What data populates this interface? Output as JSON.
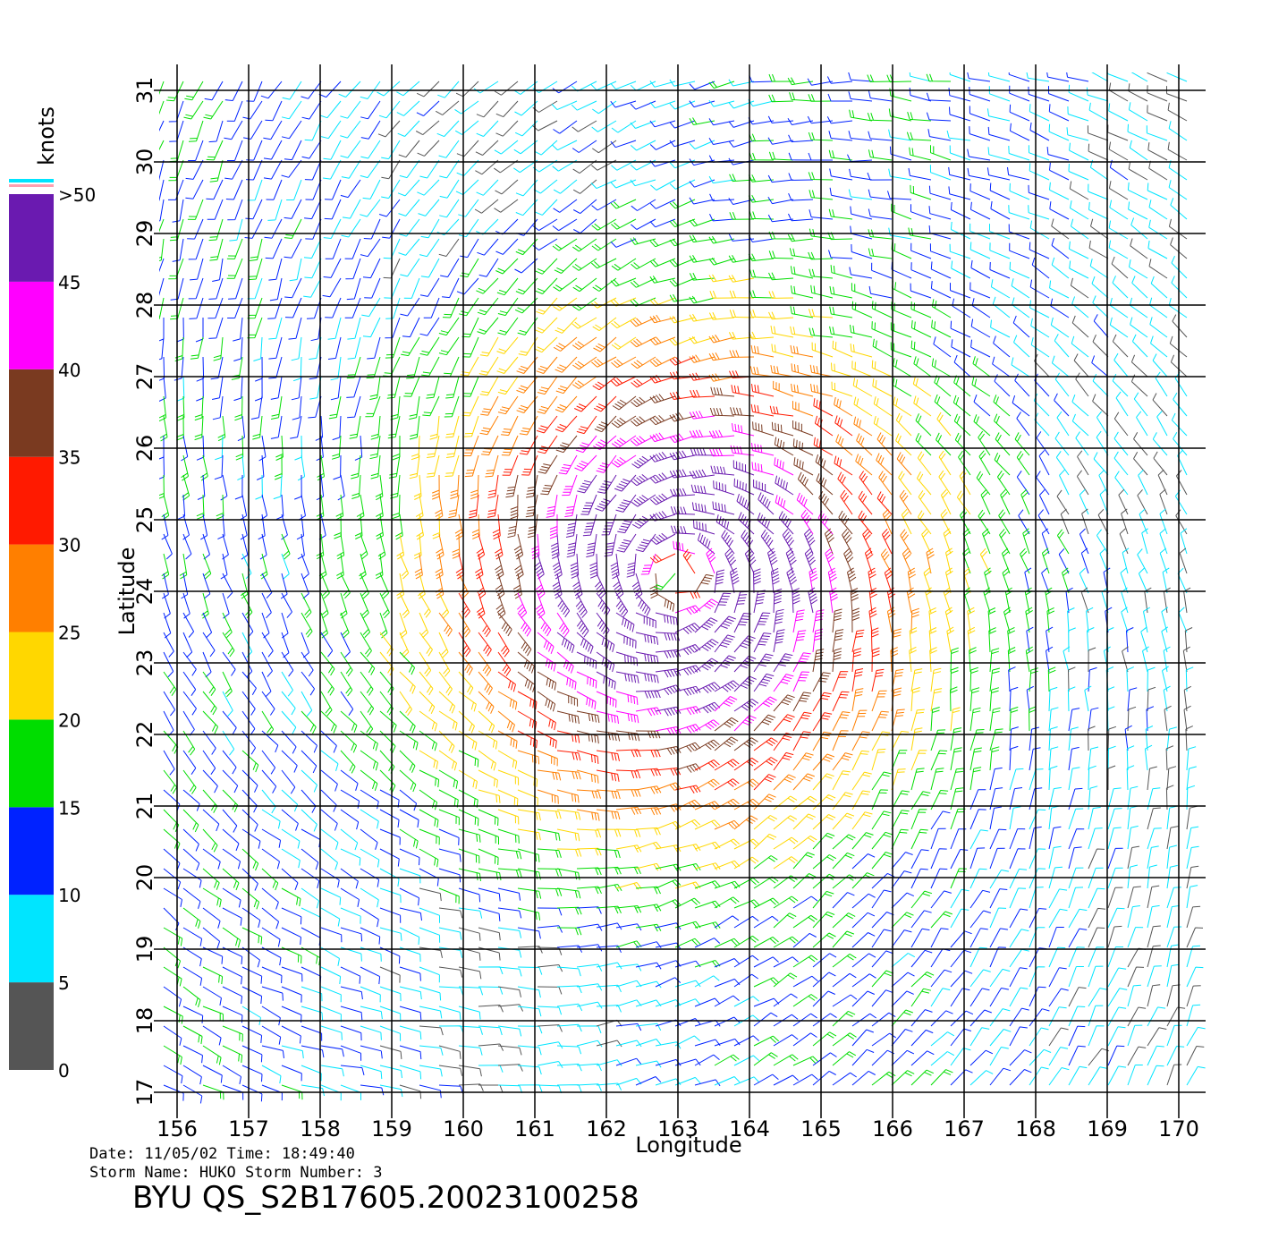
{
  "chart_data": {
    "type": "wind-barb-map",
    "xlabel": "Longitude",
    "ylabel": "Latitude",
    "xlim": [
      156,
      170
    ],
    "ylim": [
      17,
      31
    ],
    "xticks": [
      156,
      157,
      158,
      159,
      160,
      161,
      162,
      163,
      164,
      165,
      166,
      167,
      168,
      169,
      170
    ],
    "yticks": [
      17,
      18,
      19,
      20,
      21,
      22,
      23,
      24,
      25,
      26,
      27,
      28,
      29,
      30,
      31
    ],
    "grid": true,
    "colorbar": {
      "label": "knots",
      "lim": [
        0,
        50
      ],
      "ticks": [
        0,
        5,
        10,
        15,
        20,
        25,
        30,
        35,
        40,
        {
          "value": 50,
          "label": ">50"
        },
        45
      ],
      "colors": [
        "#555555",
        "#00e5ff",
        "#0022ff",
        "#00dd00",
        "#ffd700",
        "#ff7f00",
        "#ff1a00",
        "#7a3a20",
        "#ff00ff",
        "#6a1ab0"
      ]
    },
    "footer": {
      "date": "Date:  11/05/02   Time:  18:49:40",
      "storm": "Storm  Name:  HUKO   Storm  Number:  3",
      "file": "BYU  QS_S2B17605.20023100258"
    }
  }
}
